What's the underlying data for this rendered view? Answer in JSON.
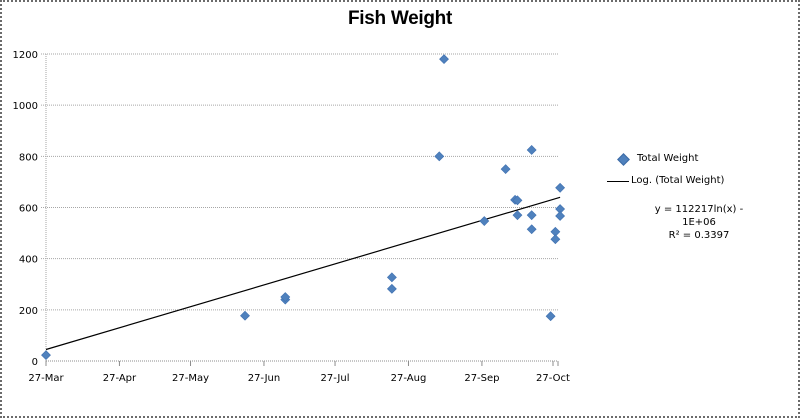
{
  "chart_data": {
    "type": "scatter",
    "title": "Fish Weight",
    "xlabel": "",
    "ylabel": "",
    "x_tick_labels": [
      "27-Mar",
      "27-Apr",
      "27-May",
      "27-Jun",
      "27-Jul",
      "27-Aug",
      "27-Sep",
      "27-Oct"
    ],
    "y_tick_labels": [
      "0",
      "200",
      "400",
      "600",
      "800",
      "1000",
      "1200"
    ],
    "ylim": [
      0,
      1200
    ],
    "xlim": [
      "27-Mar",
      "30-Oct"
    ],
    "grid": {
      "horizontal": true,
      "vertical": false
    },
    "legend_position": "right",
    "series": [
      {
        "name": "Total Weight",
        "marker": "diamond",
        "color": "#4f81bd",
        "points": [
          {
            "x": "27-Mar",
            "y": 23
          },
          {
            "x": "19-Jun",
            "y": 177
          },
          {
            "x": "06-Jul",
            "y": 240
          },
          {
            "x": "06-Jul",
            "y": 250
          },
          {
            "x": "20-Aug",
            "y": 327
          },
          {
            "x": "20-Aug",
            "y": 282
          },
          {
            "x": "09-Sep",
            "y": 800
          },
          {
            "x": "11-Sep",
            "y": 1180
          },
          {
            "x": "28-Sep",
            "y": 547
          },
          {
            "x": "07-Oct",
            "y": 750
          },
          {
            "x": "11-Oct",
            "y": 630
          },
          {
            "x": "12-Oct",
            "y": 628
          },
          {
            "x": "12-Oct",
            "y": 570
          },
          {
            "x": "18-Oct",
            "y": 825
          },
          {
            "x": "18-Oct",
            "y": 570
          },
          {
            "x": "18-Oct",
            "y": 515
          },
          {
            "x": "26-Oct",
            "y": 175
          },
          {
            "x": "28-Oct",
            "y": 505
          },
          {
            "x": "28-Oct",
            "y": 476
          },
          {
            "x": "30-Oct",
            "y": 677
          },
          {
            "x": "30-Oct",
            "y": 594
          },
          {
            "x": "30-Oct",
            "y": 567
          }
        ]
      },
      {
        "name": "Log. (Total Weight)",
        "type": "trendline",
        "color": "#000000",
        "points": [
          {
            "x": "27-Mar",
            "y": 45
          },
          {
            "x": "30-Oct",
            "y": 640
          }
        ]
      }
    ],
    "annotations": {
      "equation": "y = 112217ln(x) - 1E+06",
      "r_squared": "R² = 0.3397"
    }
  },
  "legend": {
    "items": [
      {
        "label": "Total Weight"
      },
      {
        "label": "Log. (Total Weight)"
      }
    ],
    "equation": "y = 112217ln(x) - 1E+06",
    "r_squared": "R² = 0.3397"
  },
  "colors": {
    "marker": "#4f81bd",
    "trendline": "#000000",
    "gridline": "#a6a6a6"
  }
}
